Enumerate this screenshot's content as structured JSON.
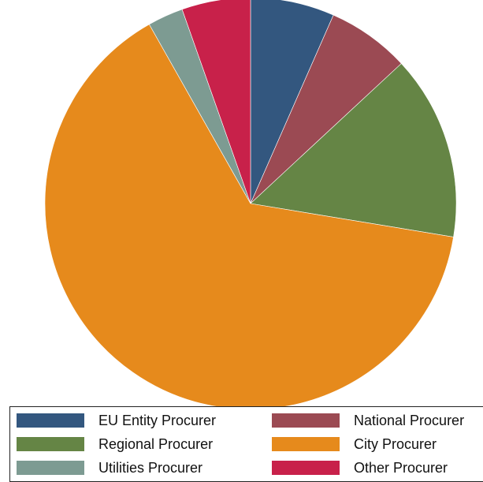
{
  "chart_data": {
    "type": "pie",
    "title": "",
    "start": "12 o'clock",
    "direction": "clockwise",
    "slices": [
      {
        "label": "EU Entity Procurer",
        "value": 6.6,
        "color": "#33577f"
      },
      {
        "label": "National Procurer",
        "value": 6.5,
        "color": "#9b4a53"
      },
      {
        "label": "Regional Procurer",
        "value": 14.5,
        "color": "#658545"
      },
      {
        "label": "City Procurer",
        "value": 64.2,
        "color": "#e68a1c"
      },
      {
        "label": "Utilities Procurer",
        "value": 2.8,
        "color": "#7d9b92"
      },
      {
        "label": "Other Procurer",
        "value": 5.4,
        "color": "#c8214a"
      }
    ],
    "legend": {
      "placement": "bottom",
      "columns": 2,
      "order": [
        "EU Entity Procurer",
        "National Procurer",
        "Regional Procurer",
        "City Procurer",
        "Utilities Procurer",
        "Other Procurer"
      ]
    }
  }
}
